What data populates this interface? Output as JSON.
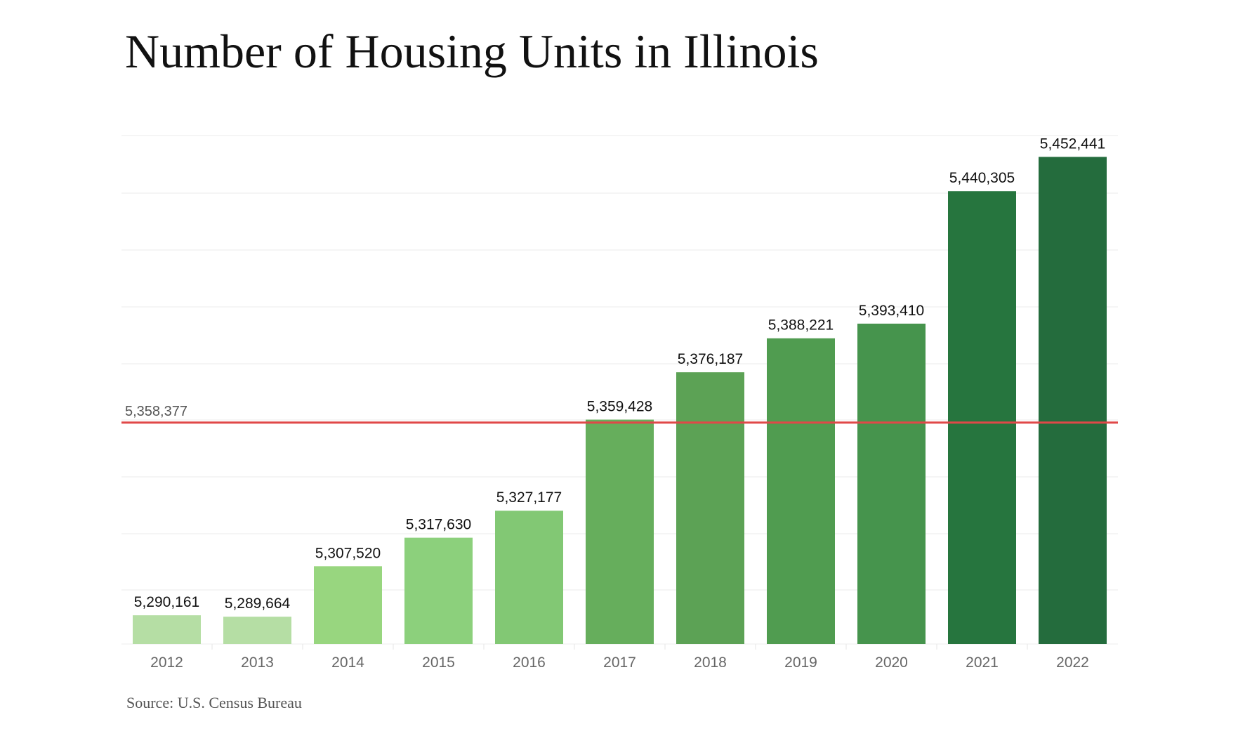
{
  "title": "Number of Housing Units in Illinois",
  "source": "Source: U.S. Census Bureau",
  "chart_data": {
    "type": "bar",
    "title": "Number of Housing Units in Illinois",
    "categories": [
      "2012",
      "2013",
      "2014",
      "2015",
      "2016",
      "2017",
      "2018",
      "2019",
      "2020",
      "2021",
      "2022"
    ],
    "values": [
      5290161,
      5289664,
      5307520,
      5317630,
      5327177,
      5359428,
      5376187,
      5388221,
      5393410,
      5440305,
      5452441
    ],
    "data_labels": [
      "5,290,161",
      "5,289,664",
      "5,307,520",
      "5,317,630",
      "5,327,177",
      "5,359,428",
      "5,376,187",
      "5,388,221",
      "5,393,410",
      "5,440,305",
      "5,452,441"
    ],
    "colors": [
      "#b5dea4",
      "#b5dea4",
      "#98d67f",
      "#8cd07c",
      "#82c874",
      "#66ae5c",
      "#5ca255",
      "#509c50",
      "#46944d",
      "#26753e",
      "#246c3d"
    ],
    "reference_line": {
      "value": 5358377,
      "label": "5,358,377",
      "color": "#e04848"
    },
    "ylim": [
      5280000,
      5460000
    ],
    "grid": true,
    "xlabel": "",
    "ylabel": ""
  }
}
